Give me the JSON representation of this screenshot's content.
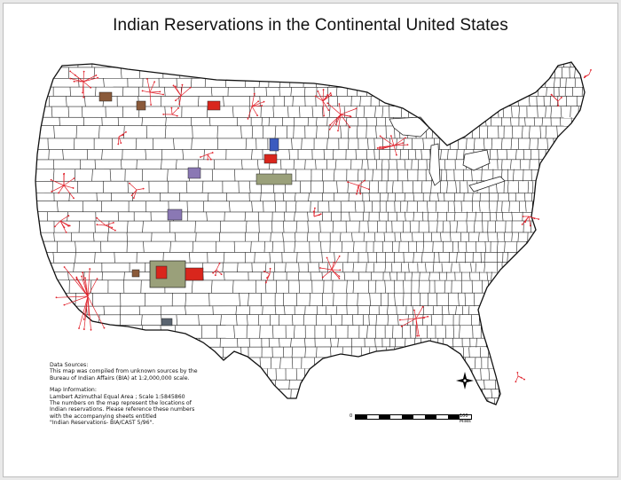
{
  "title": "Indian Reservations in the Continental United States",
  "notes": {
    "data_sources_heading": "Data Sources:",
    "data_sources_line1": "This map was compiled from unknown sources by the",
    "data_sources_line2": "Bureau of Indian Affairs (BIA) at 1:2,000,000 scale.",
    "map_info_heading": "Map Information:",
    "map_info_line1": "Lambert Azimuthal Equal Area ; Scale 1:5845860",
    "map_info_line2": "The numbers on the map represent the locations of",
    "map_info_line3": "Indian reservations. Please reference these numbers",
    "map_info_line4": "with the accompanying sheets entitled",
    "map_info_line5": "\"Indian Reservations- BIA/CAST 5/96\"."
  },
  "scale_bar": {
    "left_label": "0",
    "right_label": "100 Miles"
  },
  "compass": {
    "icon": "north-arrow-icon"
  },
  "colors": {
    "county_lines": "#222222",
    "reservation_markers": "#e0202a",
    "reservation_fill_red": "#d9261c",
    "reservation_fill_blue": "#3b5bbf",
    "reservation_fill_olive": "#9aa07a",
    "reservation_fill_purple": "#8a78b4",
    "reservation_fill_brown": "#8a5a3a"
  }
}
